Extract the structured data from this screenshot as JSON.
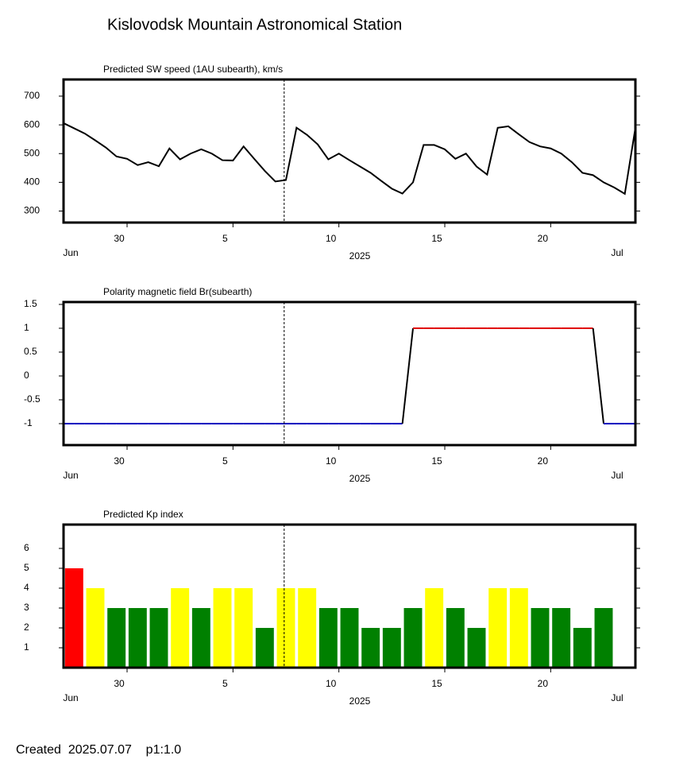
{
  "title": "Kislovodsk Mountain Astronomical Station",
  "footer": "Created  2025.07.07    p1:1.0",
  "chart_data": [
    {
      "type": "line",
      "title": "Predicted SW speed (1AU subearth), km/s",
      "x": [
        "2025-06-27 00:00",
        "2025-06-27 12:00",
        "2025-06-28 00:00",
        "2025-06-28 12:00",
        "2025-06-29 00:00",
        "2025-06-29 12:00",
        "2025-06-30 00:00",
        "2025-06-30 12:00",
        "2025-07-01 00:00",
        "2025-07-01 12:00",
        "2025-07-02 00:00",
        "2025-07-02 12:00",
        "2025-07-03 00:00",
        "2025-07-03 12:00",
        "2025-07-04 00:00",
        "2025-07-04 12:00",
        "2025-07-05 00:00",
        "2025-07-05 12:00",
        "2025-07-06 00:00",
        "2025-07-06 12:00",
        "2025-07-07 00:00",
        "2025-07-07 12:00",
        "2025-07-08 00:00",
        "2025-07-08 12:00",
        "2025-07-09 00:00",
        "2025-07-09 12:00",
        "2025-07-10 00:00",
        "2025-07-10 12:00",
        "2025-07-11 00:00",
        "2025-07-11 12:00",
        "2025-07-12 00:00",
        "2025-07-12 12:00",
        "2025-07-13 00:00",
        "2025-07-13 12:00",
        "2025-07-14 00:00",
        "2025-07-14 12:00",
        "2025-07-15 00:00",
        "2025-07-15 12:00",
        "2025-07-16 00:00",
        "2025-07-16 12:00",
        "2025-07-17 00:00",
        "2025-07-17 12:00",
        "2025-07-18 00:00",
        "2025-07-18 12:00",
        "2025-07-19 00:00",
        "2025-07-19 12:00",
        "2025-07-20 00:00",
        "2025-07-20 12:00",
        "2025-07-21 00:00",
        "2025-07-21 12:00",
        "2025-07-22 00:00",
        "2025-07-22 12:00",
        "2025-07-23 00:00",
        "2025-07-23 12:00",
        "2025-07-24 00:00"
      ],
      "series": [
        {
          "color": "#000000",
          "values": [
            606,
            588,
            570,
            546,
            521,
            490,
            482,
            460,
            470,
            456,
            518,
            480,
            500,
            515,
            500,
            477,
            476,
            525,
            482,
            440,
            403,
            408,
            590,
            565,
            532,
            480,
            500,
            477,
            455,
            433,
            405,
            378,
            361,
            400,
            530,
            530,
            515,
            482,
            500,
            455,
            427,
            590,
            595,
            567,
            540,
            525,
            518,
            500,
            470,
            433,
            425,
            400,
            382,
            360,
            590
          ]
        }
      ],
      "xlim": [
        "2025-06-27 00:00",
        "2025-07-24 00:00"
      ],
      "ylim": [
        260,
        758
      ],
      "yticks": [
        300,
        400,
        500,
        600,
        700
      ],
      "xticks": [
        {
          "value": "2025-06-30 00:00",
          "label": "30"
        },
        {
          "value": "2025-07-05 00:00",
          "label": "5"
        },
        {
          "value": "2025-07-10 00:00",
          "label": "10"
        },
        {
          "value": "2025-07-15 00:00",
          "label": "15"
        },
        {
          "value": "2025-07-20 00:00",
          "label": "20"
        }
      ],
      "month_labels": [
        "Jun",
        "Jul"
      ],
      "year_label": "2025",
      "now": "2025-07-07 10:00"
    },
    {
      "type": "polarity",
      "title": "Polarity magnetic field  Br(subearth)",
      "x": [
        "2025-06-27 00:00",
        "2025-06-27 12:00",
        "2025-06-28 00:00",
        "2025-06-28 12:00",
        "2025-06-29 00:00",
        "2025-06-29 12:00",
        "2025-06-30 00:00",
        "2025-06-30 12:00",
        "2025-07-01 00:00",
        "2025-07-01 12:00",
        "2025-07-02 00:00",
        "2025-07-02 12:00",
        "2025-07-03 00:00",
        "2025-07-03 12:00",
        "2025-07-04 00:00",
        "2025-07-04 12:00",
        "2025-07-05 00:00",
        "2025-07-05 12:00",
        "2025-07-06 00:00",
        "2025-07-06 12:00",
        "2025-07-07 00:00",
        "2025-07-07 12:00",
        "2025-07-08 00:00",
        "2025-07-08 12:00",
        "2025-07-09 00:00",
        "2025-07-09 12:00",
        "2025-07-10 00:00",
        "2025-07-10 12:00",
        "2025-07-11 00:00",
        "2025-07-11 12:00",
        "2025-07-12 00:00",
        "2025-07-12 12:00",
        "2025-07-13 00:00",
        "2025-07-13 12:00",
        "2025-07-14 00:00",
        "2025-07-14 12:00",
        "2025-07-15 00:00",
        "2025-07-15 12:00",
        "2025-07-16 00:00",
        "2025-07-16 12:00",
        "2025-07-17 00:00",
        "2025-07-17 12:00",
        "2025-07-18 00:00",
        "2025-07-18 12:00",
        "2025-07-19 00:00",
        "2025-07-19 12:00",
        "2025-07-20 00:00",
        "2025-07-20 12:00",
        "2025-07-21 00:00",
        "2025-07-21 12:00",
        "2025-07-22 00:00",
        "2025-07-22 12:00",
        "2025-07-23 00:00",
        "2025-07-23 12:00",
        "2025-07-24 00:00"
      ],
      "series": [
        {
          "color": "#000000",
          "positive_color": "#e00000",
          "negative_color": "#0000c0",
          "values": [
            -1,
            -1,
            -1,
            -1,
            -1,
            -1,
            -1,
            -1,
            -1,
            -1,
            -1,
            -1,
            -1,
            -1,
            -1,
            -1,
            -1,
            -1,
            -1,
            -1,
            -1,
            -1,
            -1,
            -1,
            -1,
            -1,
            -1,
            -1,
            -1,
            -1,
            -1,
            -1,
            -1,
            1,
            1,
            1,
            1,
            1,
            1,
            1,
            1,
            1,
            1,
            1,
            1,
            1,
            1,
            1,
            1,
            1,
            1,
            -1,
            -1,
            -1,
            -1
          ]
        }
      ],
      "xlim": [
        "2025-06-27 00:00",
        "2025-07-24 00:00"
      ],
      "ylim": [
        -1.45,
        1.55
      ],
      "yticks": [
        1.5,
        1,
        0.5,
        0,
        -0.5,
        -1
      ],
      "xticks": [
        {
          "value": "2025-06-30 00:00",
          "label": "30"
        },
        {
          "value": "2025-07-05 00:00",
          "label": "5"
        },
        {
          "value": "2025-07-10 00:00",
          "label": "10"
        },
        {
          "value": "2025-07-15 00:00",
          "label": "15"
        },
        {
          "value": "2025-07-20 00:00",
          "label": "20"
        }
      ],
      "month_labels": [
        "Jun",
        "Jul"
      ],
      "year_label": "2025",
      "now": "2025-07-07 10:00"
    },
    {
      "type": "bar",
      "title": "Predicted Kp index",
      "categories": [
        "2025-06-27",
        "2025-06-28",
        "2025-06-29",
        "2025-06-30",
        "2025-07-01",
        "2025-07-02",
        "2025-07-03",
        "2025-07-04",
        "2025-07-05",
        "2025-07-06",
        "2025-07-07",
        "2025-07-08",
        "2025-07-09",
        "2025-07-10",
        "2025-07-11",
        "2025-07-12",
        "2025-07-13",
        "2025-07-14",
        "2025-07-15",
        "2025-07-16",
        "2025-07-17",
        "2025-07-18",
        "2025-07-19",
        "2025-07-20",
        "2025-07-21",
        "2025-07-22"
      ],
      "values": [
        5,
        4,
        3,
        3,
        3,
        4,
        3,
        4,
        4,
        2,
        4,
        4,
        3,
        3,
        2,
        2,
        3,
        4,
        3,
        2,
        4,
        4,
        3,
        3,
        2,
        3
      ],
      "colors": [
        "#ff0000",
        "#ffff00",
        "#008000",
        "#008000",
        "#008000",
        "#ffff00",
        "#008000",
        "#ffff00",
        "#ffff00",
        "#008000",
        "#ffff00",
        "#ffff00",
        "#008000",
        "#008000",
        "#008000",
        "#008000",
        "#008000",
        "#ffff00",
        "#008000",
        "#008000",
        "#ffff00",
        "#ffff00",
        "#008000",
        "#008000",
        "#008000",
        "#008000"
      ],
      "xlim": [
        "2025-06-27 00:00",
        "2025-07-24 00:00"
      ],
      "ylim": [
        0,
        7.2
      ],
      "yticks": [
        1,
        2,
        3,
        4,
        5,
        6
      ],
      "xticks": [
        {
          "value": "2025-06-30 00:00",
          "label": "30"
        },
        {
          "value": "2025-07-05 00:00",
          "label": "5"
        },
        {
          "value": "2025-07-10 00:00",
          "label": "10"
        },
        {
          "value": "2025-07-15 00:00",
          "label": "15"
        },
        {
          "value": "2025-07-20 00:00",
          "label": "20"
        }
      ],
      "month_labels": [
        "Jun",
        "Jul"
      ],
      "year_label": "2025",
      "now": "2025-07-07 10:00"
    }
  ]
}
